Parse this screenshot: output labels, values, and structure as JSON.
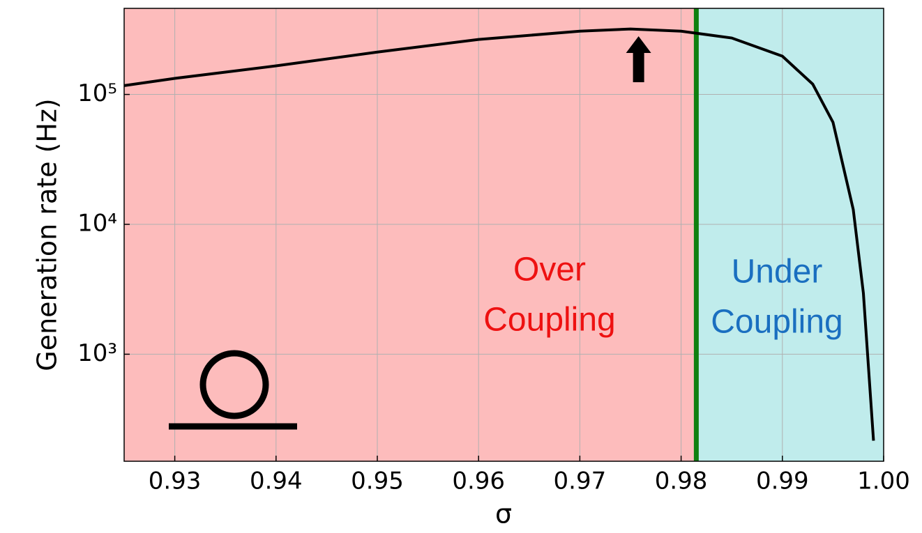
{
  "chart_data": {
    "type": "line",
    "x_label": "σ",
    "y_label": "Generation rate (Hz)",
    "x": [
      0.925,
      0.93,
      0.94,
      0.95,
      0.96,
      0.97,
      0.975,
      0.98,
      0.985,
      0.99,
      0.993,
      0.995,
      0.997,
      0.998,
      0.999
    ],
    "values": [
      117000,
      133000,
      166000,
      212000,
      265000,
      307000,
      319000,
      307000,
      272000,
      197000,
      120000,
      61000,
      13000,
      2950,
      216
    ],
    "color": "#000000",
    "xlim": [
      0.925,
      1.0
    ],
    "xticks": [
      0.93,
      0.94,
      0.95,
      0.96,
      0.97,
      0.98,
      0.99,
      {
        "value": 1.0,
        "label": "1.00"
      }
    ],
    "ylim": [
      150,
      460000
    ],
    "yticks": [
      {
        "value": 1000,
        "label": "10³"
      },
      {
        "value": 10000,
        "label": "10⁴"
      },
      {
        "value": 100000,
        "label": "10⁵"
      }
    ],
    "log_y": true,
    "grid": true,
    "threshold_x": 0.9815,
    "threshold_color": "#108010",
    "regions": [
      {
        "color": "#fdbcbc"
      },
      {
        "color": "#c0ecec"
      }
    ],
    "arrow_x": 0.9758,
    "annotations": [
      {
        "lines": [
          "Over",
          "Coupling"
        ],
        "color": "#ee1111"
      },
      {
        "lines": [
          "Under",
          "Coupling"
        ],
        "color": "#1a6fc0"
      }
    ]
  }
}
